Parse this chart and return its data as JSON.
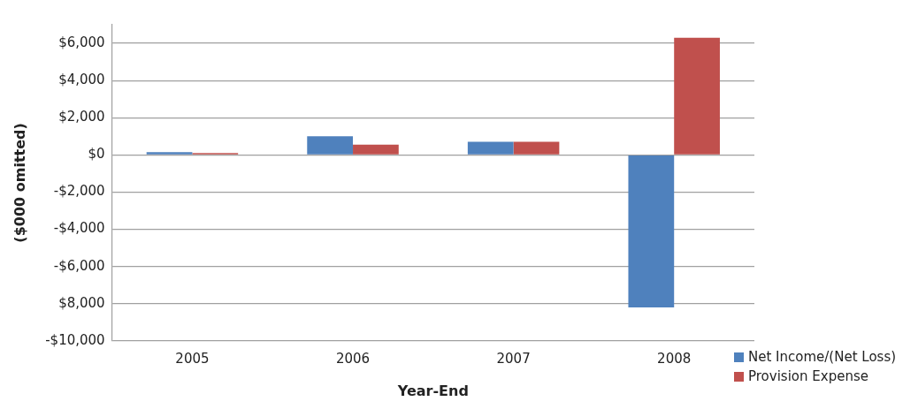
{
  "chart_data": {
    "type": "bar",
    "xlabel": "Year-End",
    "ylabel": "($000 omitted)",
    "categories": [
      "2005",
      "2006",
      "2007",
      "2008"
    ],
    "series": [
      {
        "name": "Net Income/(Net Loss)",
        "color": "#4f81bd",
        "values": [
          150,
          1000,
          700,
          -8200
        ]
      },
      {
        "name": "Provision Expense",
        "color": "#c0504d",
        "values": [
          100,
          550,
          700,
          6300
        ]
      }
    ],
    "ylim": [
      -10000,
      7000
    ],
    "yticks": [
      {
        "value": -10000,
        "label": "-$10,000"
      },
      {
        "value": -8000,
        "label": "$8,000"
      },
      {
        "value": -6000,
        "label": "-$6,000"
      },
      {
        "value": -4000,
        "label": "-$4,000"
      },
      {
        "value": -2000,
        "label": "-$2,000"
      },
      {
        "value": 0,
        "label": "$0"
      },
      {
        "value": 2000,
        "label": "$2,000"
      },
      {
        "value": 4000,
        "label": "$4,000"
      },
      {
        "value": 6000,
        "label": "$6,000"
      }
    ],
    "grid": "y",
    "legend": "bottom right"
  }
}
